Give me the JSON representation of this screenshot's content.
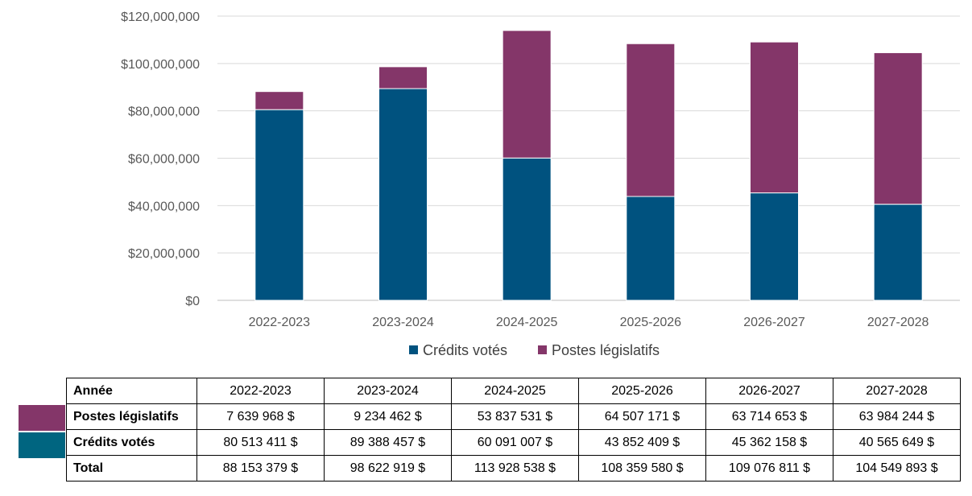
{
  "chart_data": {
    "type": "bar",
    "stacked": true,
    "categories": [
      "2022-2023",
      "2023-2024",
      "2024-2025",
      "2025-2026",
      "2026-2027",
      "2027-2028"
    ],
    "series": [
      {
        "name": "Crédits votés",
        "color": "#00527f",
        "values": [
          80513411,
          89388457,
          60091007,
          43852409,
          45362158,
          40565649
        ]
      },
      {
        "name": "Postes législatifs",
        "color": "#843669",
        "values": [
          7639968,
          9234462,
          53837531,
          64507171,
          63714653,
          63984244
        ]
      }
    ],
    "ylim": [
      0,
      120000000
    ],
    "yticks": [
      "$0",
      "$20,000,000",
      "$40,000,000",
      "$60,000,000",
      "$80,000,000",
      "$100,000,000",
      "$120,000,000"
    ],
    "grid": true,
    "legend_position": "bottom"
  },
  "table": {
    "header_label": "Année",
    "years": [
      "2022-2023",
      "2023-2024",
      "2024-2025",
      "2025-2026",
      "2026-2027",
      "2027-2028"
    ],
    "rows": [
      {
        "label": "Postes législatifs",
        "swatch_color": "#843669",
        "values": [
          "7 639 968 $",
          "9 234 462 $",
          "53 837 531 $",
          "64 507 171 $",
          "63 714 653 $",
          "63 984 244 $"
        ]
      },
      {
        "label": "Crédits votés",
        "swatch_color": "#006580",
        "values": [
          "80 513 411 $",
          "89 388 457 $",
          "60 091 007 $",
          "43 852 409 $",
          "45 362 158 $",
          "40 565 649 $"
        ]
      },
      {
        "label": "Total",
        "swatch_color": "",
        "values": [
          "88 153 379 $",
          "98 622 919 $",
          "113 928 538 $",
          "108 359 580 $",
          "109 076 811 $",
          "104 549 893 $"
        ]
      }
    ]
  }
}
